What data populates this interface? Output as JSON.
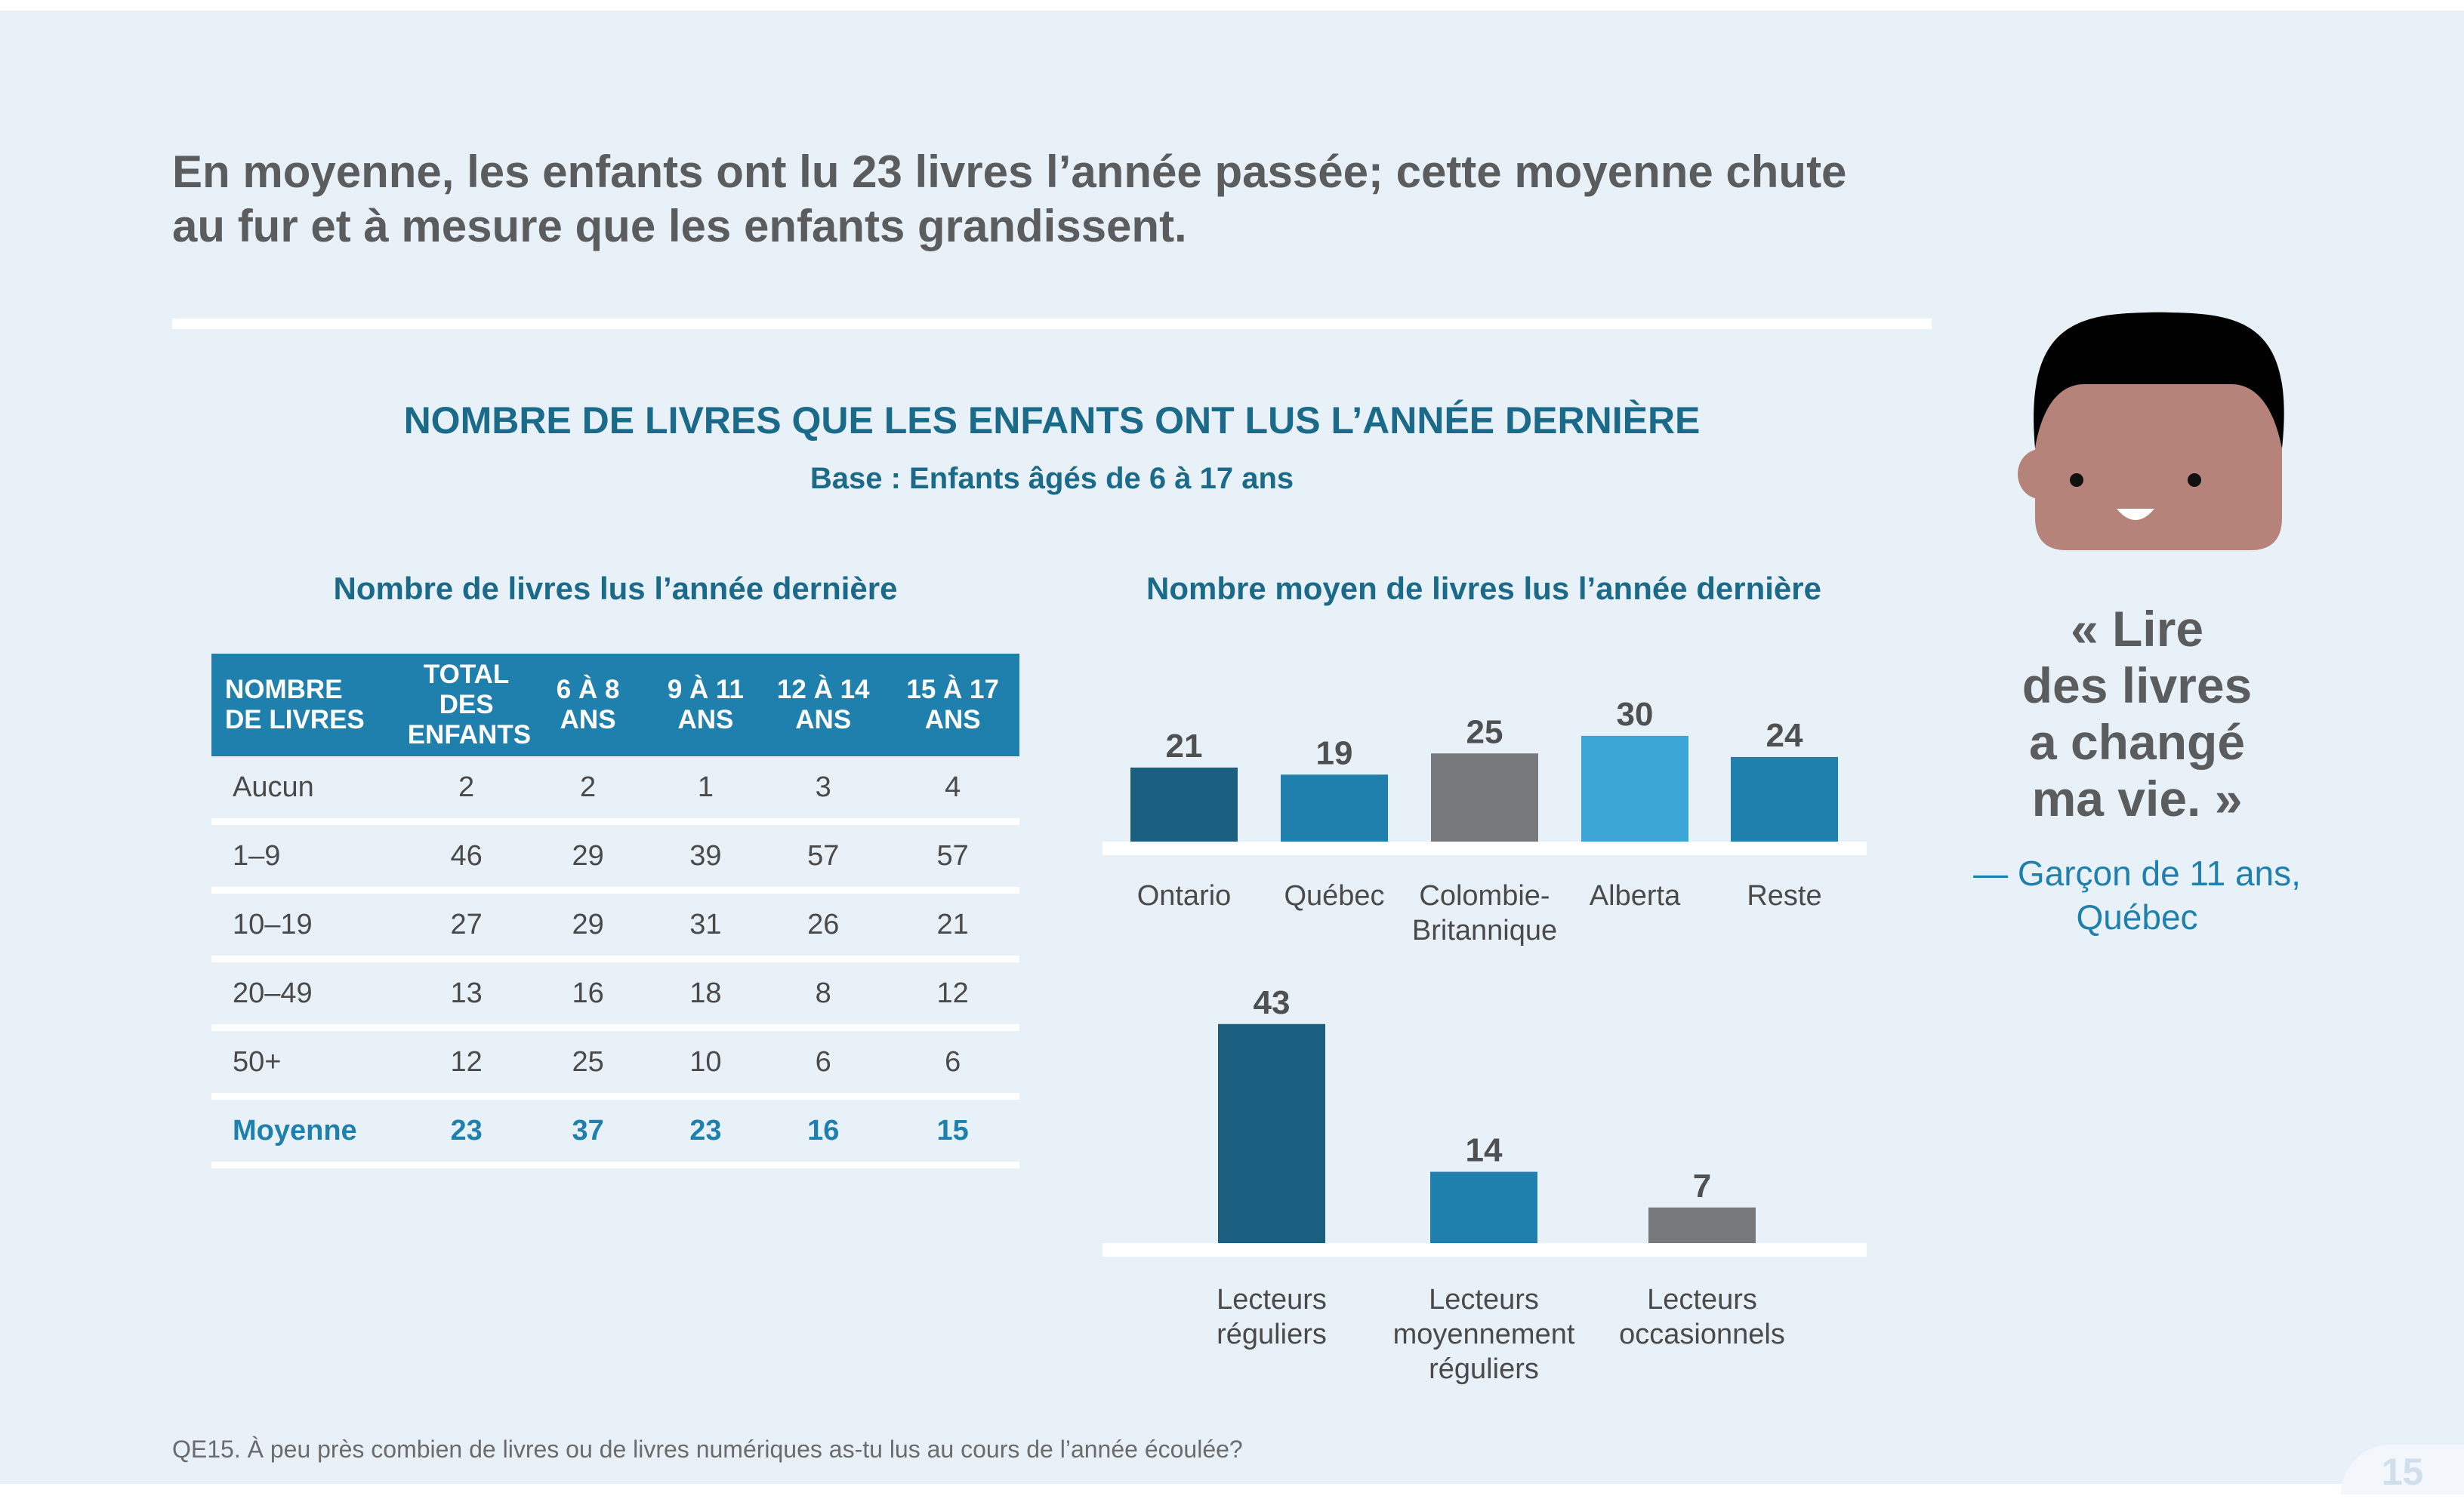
{
  "headline": "En moyenne, les enfants ont lu 23 livres l’année passée; cette moyenne chute au fur et à mesure que les enfants grandissent.",
  "chart_title": "NOMBRE DE LIVRES QUE LES ENFANTS ONT LUS L’ANNÉE DERNIÈRE",
  "chart_base": "Base : Enfants âgés de 6 à 17 ans",
  "table_title": "Nombre de livres lus l’année dernière",
  "bars_title": "Nombre moyen de livres lus l’année dernière",
  "quote": {
    "lines": [
      "« Lire",
      "des livres",
      "a changé",
      "ma vie. »"
    ],
    "attribution_lines": [
      "— Garçon de 11 ans,",
      "Québec"
    ]
  },
  "footnote": "QE15. À peu près combien de livres ou de livres numériques as-tu lus au cours de l’année écoulée?",
  "page_number": "15",
  "colors": {
    "dark_blue": "#1b5f80",
    "mid_blue": "#1f80ad",
    "gray": "#77787b",
    "light_blue": "#3ca6d6",
    "title_blue": "#1c6a8a",
    "background": "#e9f1f8"
  },
  "icons": {
    "avatar": "boy-face-icon"
  },
  "chart_data": [
    {
      "type": "table",
      "title": "Nombre de livres lus l’année dernière",
      "columns": [
        [
          "NOMBRE",
          "DE LIVRES"
        ],
        [
          "TOTAL",
          "DES",
          "ENFANTS"
        ],
        [
          "6 À 8",
          "ANS"
        ],
        [
          "9 À 11",
          "ANS"
        ],
        [
          "12 À 14",
          "ANS"
        ],
        [
          "15 À 17",
          "ANS"
        ]
      ],
      "rows": [
        [
          "Aucun",
          "2",
          "2",
          "1",
          "3",
          "4"
        ],
        [
          "1–9",
          "46",
          "29",
          "39",
          "57",
          "57"
        ],
        [
          "10–19",
          "27",
          "29",
          "31",
          "26",
          "21"
        ],
        [
          "20–49",
          "13",
          "16",
          "18",
          "8",
          "12"
        ],
        [
          "50+",
          "12",
          "25",
          "10",
          "6",
          "6"
        ],
        [
          "Moyenne",
          "23",
          "37",
          "23",
          "16",
          "15"
        ]
      ]
    },
    {
      "type": "bar",
      "title": "Nombre moyen de livres lus l’année dernière",
      "categories": [
        [
          "Ontario"
        ],
        [
          "Québec"
        ],
        [
          "Colombie-",
          "Britannique"
        ],
        [
          "Alberta"
        ],
        [
          "Reste"
        ]
      ],
      "values": [
        21,
        19,
        25,
        30,
        24
      ],
      "colors": [
        "#1b5f80",
        "#1f80ad",
        "#77787b",
        "#3ca6d6",
        "#1f80ad"
      ]
    },
    {
      "type": "bar",
      "categories": [
        [
          "Lecteurs",
          "réguliers"
        ],
        [
          "Lecteurs",
          "moyennement",
          "réguliers"
        ],
        [
          "Lecteurs",
          "occasionnels"
        ]
      ],
      "values": [
        43,
        14,
        7
      ],
      "colors": [
        "#1b5f80",
        "#1f80ad",
        "#77787b"
      ]
    }
  ]
}
